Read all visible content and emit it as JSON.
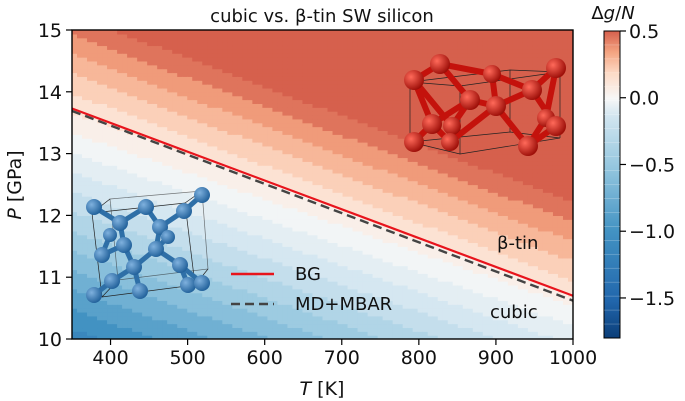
{
  "chart_data": {
    "type": "heatmap",
    "title": "cubic vs. β-tin SW silicon",
    "xlabel": {
      "italic": "T",
      "rest": " [K]"
    },
    "ylabel": {
      "italic": "P",
      "rest": " [GPa]"
    },
    "xlim": [
      350,
      1000
    ],
    "ylim": [
      10,
      15
    ],
    "xticks": [
      400,
      500,
      600,
      700,
      800,
      900,
      1000
    ],
    "yticks": [
      10,
      11,
      12,
      13,
      14,
      15
    ],
    "colorbar": {
      "label": {
        "pre": "Δ",
        "italic": "g",
        "mid": "/",
        "italic2": "N"
      },
      "range": [
        -1.8,
        0.5
      ],
      "ticks": [
        0.5,
        0.0,
        -0.5,
        -1.0,
        -1.5
      ],
      "tick_labels": [
        "0.5",
        "0.0",
        "−0.5",
        "−1.0",
        "−1.5"
      ],
      "colormap": "RdBu_r",
      "levels": 22
    },
    "series": [
      {
        "name": "BG",
        "style": "solid",
        "color": "#e8141c",
        "x": [
          350,
          1000
        ],
        "y": [
          13.73,
          10.7
        ]
      },
      {
        "name": "MD+MBAR",
        "style": "dashed",
        "color": "#444444",
        "x": [
          350,
          1000
        ],
        "y": [
          13.69,
          10.62
        ]
      }
    ],
    "surface": {
      "dg_per_gpa": 0.235,
      "dg_per_1000K": -0.07,
      "ref_T": 350,
      "ref_P": 13.7
    },
    "legend_position": "lower-center",
    "annotations": [
      {
        "text": "β-tin",
        "region": "upper-right"
      },
      {
        "text": "cubic",
        "region": "lower-right"
      }
    ],
    "insets": [
      {
        "name": "diamond-cubic-structure-illustration",
        "color": "#2e6fa7"
      },
      {
        "name": "beta-tin-structure-illustration",
        "color": "#c4120c"
      }
    ]
  }
}
